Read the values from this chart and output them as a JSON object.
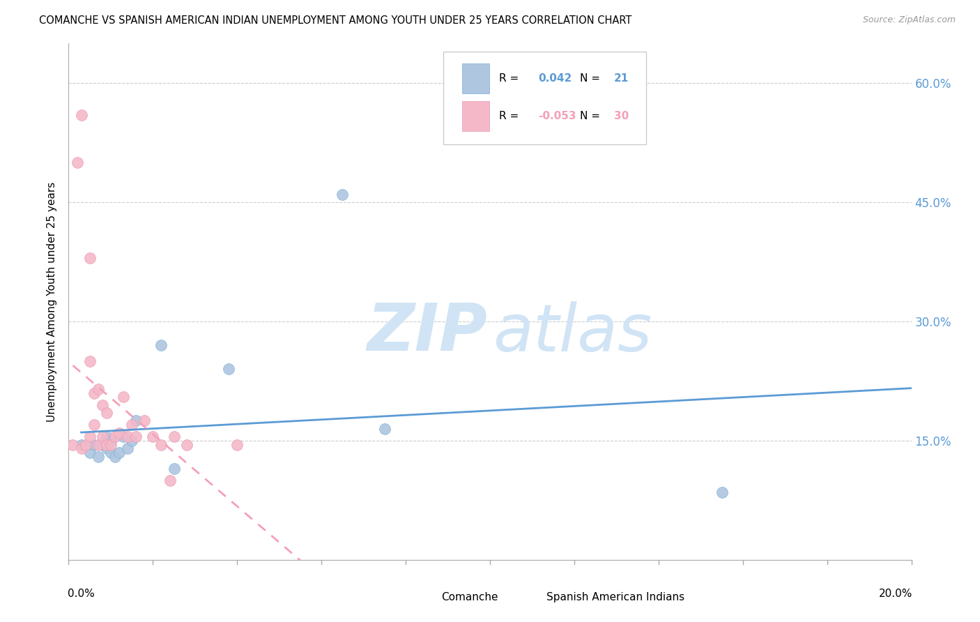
{
  "title": "COMANCHE VS SPANISH AMERICAN INDIAN UNEMPLOYMENT AMONG YOUTH UNDER 25 YEARS CORRELATION CHART",
  "source": "Source: ZipAtlas.com",
  "ylabel": "Unemployment Among Youth under 25 years",
  "yticks": [
    0.0,
    0.15,
    0.3,
    0.45,
    0.6
  ],
  "ytick_labels": [
    "",
    "15.0%",
    "30.0%",
    "45.0%",
    "60.0%"
  ],
  "xlim": [
    0.0,
    0.2
  ],
  "ylim": [
    0.0,
    0.65
  ],
  "comanche_R": 0.042,
  "comanche_N": 21,
  "spanish_R": -0.053,
  "spanish_N": 30,
  "comanche_color": "#aec6e0",
  "spanish_color": "#f4b8c8",
  "comanche_edge_color": "#7bafd4",
  "spanish_edge_color": "#e899b0",
  "comanche_line_color": "#5b9bd5",
  "spanish_line_color": "#f4a0b8",
  "grid_color": "#cccccc",
  "axis_color": "#aaaaaa",
  "tick_label_color": "#5b9bd5",
  "watermark_color": "#d0e4f5",
  "comanche_x": [
    0.003,
    0.005,
    0.006,
    0.007,
    0.008,
    0.009,
    0.009,
    0.01,
    0.01,
    0.011,
    0.012,
    0.013,
    0.014,
    0.015,
    0.016,
    0.022,
    0.025,
    0.038,
    0.065,
    0.075,
    0.155
  ],
  "comanche_y": [
    0.145,
    0.135,
    0.145,
    0.13,
    0.145,
    0.14,
    0.155,
    0.135,
    0.15,
    0.13,
    0.135,
    0.155,
    0.14,
    0.15,
    0.175,
    0.27,
    0.115,
    0.24,
    0.46,
    0.165,
    0.085
  ],
  "spanish_x": [
    0.001,
    0.002,
    0.003,
    0.003,
    0.004,
    0.005,
    0.005,
    0.005,
    0.006,
    0.006,
    0.007,
    0.007,
    0.008,
    0.008,
    0.009,
    0.009,
    0.01,
    0.011,
    0.012,
    0.013,
    0.014,
    0.015,
    0.016,
    0.018,
    0.02,
    0.022,
    0.024,
    0.025,
    0.028,
    0.04
  ],
  "spanish_y": [
    0.145,
    0.5,
    0.56,
    0.14,
    0.145,
    0.38,
    0.25,
    0.155,
    0.17,
    0.21,
    0.145,
    0.215,
    0.195,
    0.155,
    0.185,
    0.145,
    0.145,
    0.155,
    0.16,
    0.205,
    0.155,
    0.17,
    0.155,
    0.175,
    0.155,
    0.145,
    0.1,
    0.155,
    0.145,
    0.145
  ]
}
